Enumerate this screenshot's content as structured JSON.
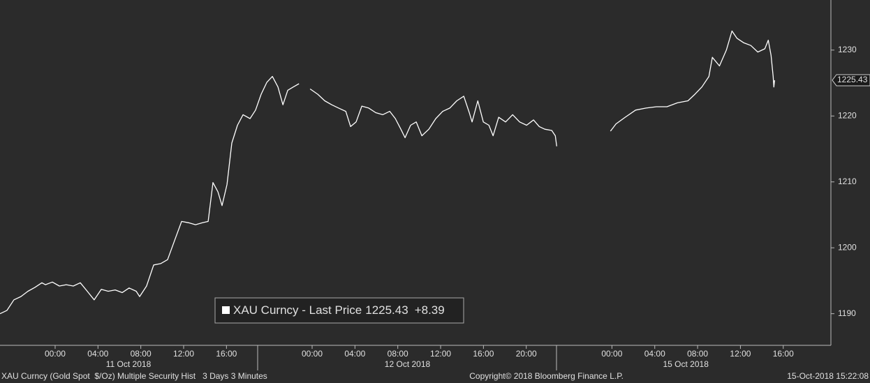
{
  "chart_data": {
    "type": "line",
    "series": [
      {
        "name": "XAU Curncy - Last Price",
        "color": "#ffffff",
        "x": [
          -5.15,
          -4.5,
          -3.85,
          -3.2,
          -2.54,
          -1.89,
          -1.24,
          -0.91,
          -0.26,
          0.39,
          1.04,
          1.7,
          2.35,
          3.0,
          3.65,
          4.31,
          4.96,
          5.61,
          6.26,
          6.91,
          7.57,
          7.89,
          8.54,
          9.2,
          9.85,
          10.5,
          11.15,
          11.81,
          12.46,
          13.11,
          13.76,
          14.29,
          14.74,
          15.2,
          15.59,
          16.05,
          16.5,
          17.03,
          17.55,
          18.2,
          18.72,
          19.24,
          19.77,
          20.29,
          20.81,
          21.27,
          21.72,
          22.24,
          22.77,
          23.3,
          23.81,
          24.53,
          25.18,
          25.83,
          26.48,
          27.14,
          27.59,
          28.11,
          28.64,
          29.29,
          29.94,
          30.59,
          31.25,
          31.77,
          32.29,
          32.68,
          33.2,
          33.72,
          34.25,
          34.9,
          35.55,
          36.2,
          36.86,
          37.51,
          38.16,
          38.68,
          38.94,
          39.47,
          39.99,
          40.51,
          40.9,
          41.42,
          42.07,
          42.73,
          43.38,
          44.03,
          44.68,
          45.21,
          45.73,
          46.38,
          46.71,
          46.84,
          49.3,
          51.86,
          52.38,
          53.23,
          54.21,
          55.19,
          56.16,
          57.14,
          58.12,
          59.1,
          59.75,
          60.4,
          61.06,
          61.38,
          62.04,
          62.69,
          63.21,
          63.67,
          64.32,
          64.97,
          65.62,
          66.28,
          66.6,
          66.86,
          67.06,
          67.12,
          67.19
        ],
        "values": [
          1190.0,
          1190.5,
          1192.1,
          1192.6,
          1193.4,
          1194.0,
          1194.7,
          1194.4,
          1194.8,
          1194.2,
          1194.4,
          1194.2,
          1194.7,
          1193.4,
          1192.1,
          1193.7,
          1193.4,
          1193.6,
          1193.2,
          1193.9,
          1193.4,
          1192.6,
          1194.2,
          1197.4,
          1197.6,
          1198.2,
          1201.1,
          1204.0,
          1203.8,
          1203.5,
          1203.8,
          1204.0,
          1209.9,
          1208.5,
          1206.4,
          1209.6,
          1215.9,
          1218.6,
          1220.2,
          1219.6,
          1220.9,
          1223.3,
          1225.1,
          1226.0,
          1224.4,
          1221.7,
          1223.9,
          1224.4,
          1224.9,
          null,
          1224.1,
          1223.3,
          1222.3,
          1221.7,
          1221.2,
          1220.7,
          1218.4,
          1219.1,
          1221.5,
          1221.2,
          1220.5,
          1220.2,
          1220.7,
          1219.6,
          1218.0,
          1216.7,
          1218.6,
          1219.1,
          1217.0,
          1218.0,
          1219.6,
          1220.7,
          1221.2,
          1222.3,
          1223.0,
          1220.5,
          1219.1,
          1222.3,
          1219.1,
          1218.6,
          1217.0,
          1219.8,
          1219.1,
          1220.2,
          1219.1,
          1218.6,
          1219.4,
          1218.4,
          1218.0,
          1217.8,
          1217.0,
          1215.4,
          null,
          1217.7,
          1218.8,
          1219.8,
          1220.9,
          1221.2,
          1221.4,
          1221.4,
          1222.0,
          1222.3,
          1223.3,
          1224.4,
          1226.0,
          1228.9,
          1227.6,
          1230.0,
          1232.9,
          1231.8,
          1231.1,
          1230.7,
          1229.7,
          1230.2,
          1231.5,
          1229.2,
          1226.0,
          1224.4,
          1225.43
        ]
      }
    ],
    "last_value": 1225.43,
    "change": "+8.39",
    "xlim": [
      -5.15,
      72.45
    ],
    "ylim": [
      1185.2,
      1237.6
    ],
    "yticks": [
      1190,
      1200,
      1210,
      1220,
      1230
    ],
    "xticks": [
      {
        "value": 0,
        "label": "00:00"
      },
      {
        "value": 4,
        "label": "04:00"
      },
      {
        "value": 8,
        "label": "08:00"
      },
      {
        "value": 12,
        "label": "12:00"
      },
      {
        "value": 16,
        "label": "16:00"
      },
      {
        "value": 24,
        "label": "00:00"
      },
      {
        "value": 28,
        "label": "04:00"
      },
      {
        "value": 32,
        "label": "08:00"
      },
      {
        "value": 36,
        "label": "12:00"
      },
      {
        "value": 40,
        "label": "16:00"
      },
      {
        "value": 44,
        "label": "20:00"
      },
      {
        "value": 52,
        "label": "00:00"
      },
      {
        "value": 56,
        "label": "04:00"
      },
      {
        "value": 60,
        "label": "08:00"
      },
      {
        "value": 64,
        "label": "12:00"
      },
      {
        "value": 68,
        "label": "16:00"
      }
    ],
    "day_ticks": [
      {
        "value": 6.85,
        "label": "11 Oct 2018"
      },
      {
        "value": 32.9,
        "label": "12 Oct 2018"
      },
      {
        "value": 58.9,
        "label": "15 Oct 2018"
      }
    ],
    "footer": {
      "security": "XAU Curncy (Gold Spot  $/Oz) Multiple Security Hist   3 Days 3 Minutes",
      "copyright": "Copyright© 2018 Bloomberg Finance L.P.",
      "timestamp": "15-Oct-2018 15:22:08"
    }
  }
}
